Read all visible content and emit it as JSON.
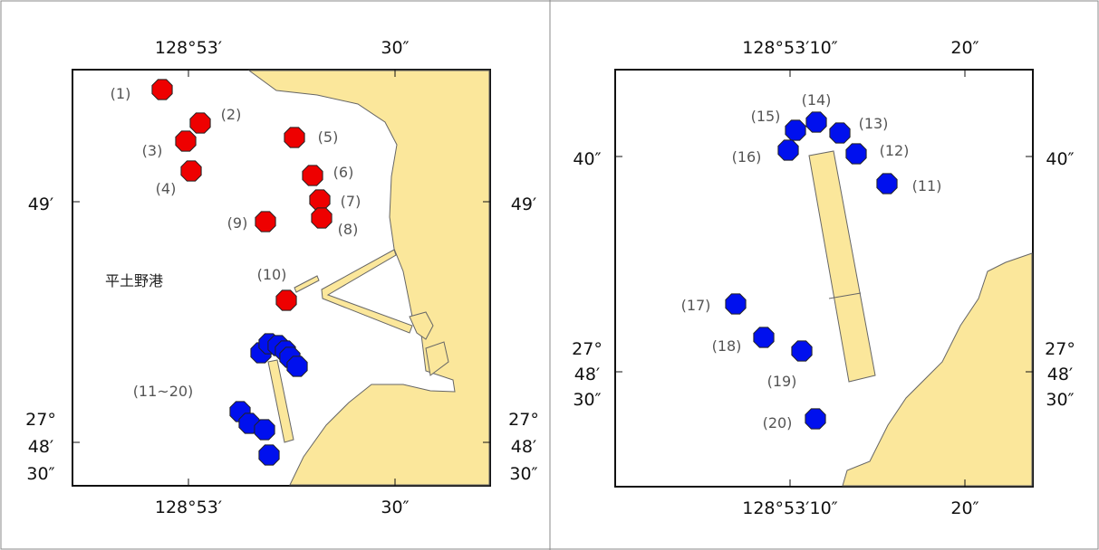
{
  "left_map": {
    "lon_labels": [
      "128°53′",
      "30″"
    ],
    "lat_labels": [
      [
        "49′"
      ],
      [
        "27°",
        "48′",
        "30″"
      ]
    ],
    "place_label": "平土野港",
    "group_label": "(11~20)",
    "stations": [
      "(1)",
      "(2)",
      "(3)",
      "(4)",
      "(5)",
      "(6)",
      "(7)",
      "(8)",
      "(9)",
      "(10)"
    ]
  },
  "right_map": {
    "lon_labels": [
      "128°53′10″",
      "20″"
    ],
    "lat_labels": [
      [
        "40″"
      ],
      [
        "27°",
        "48′",
        "30″"
      ]
    ],
    "stations": [
      "(11)",
      "(12)",
      "(13)",
      "(14)",
      "(15)",
      "(16)",
      "(17)",
      "(18)",
      "(19)",
      "(20)"
    ]
  }
}
